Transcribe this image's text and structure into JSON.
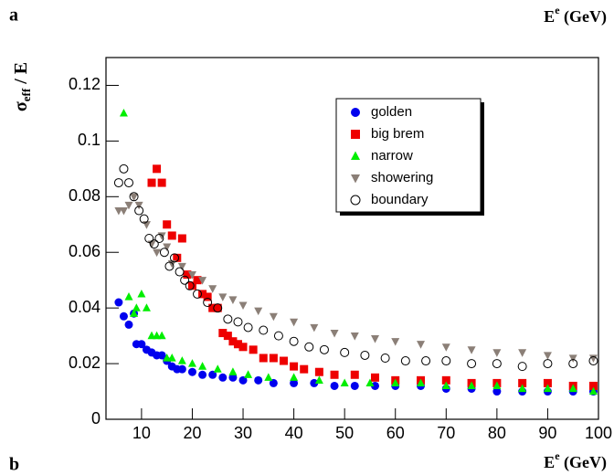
{
  "panel_a": "a",
  "panel_b": "b",
  "header_label": {
    "base": "E",
    "sup": "e",
    "unit": "(GeV)"
  },
  "chart_data": {
    "type": "scatter",
    "x_label": {
      "base": "E",
      "sup": "e",
      "unit": "(GeV)"
    },
    "y_label": {
      "base": "σ",
      "sub": "eff",
      "rest": "/ E"
    },
    "xlim": [
      3,
      100
    ],
    "ylim": [
      0,
      0.13
    ],
    "xticks": [
      10,
      20,
      30,
      40,
      50,
      60,
      70,
      80,
      90,
      100
    ],
    "yticks": [
      0,
      0.02,
      0.04,
      0.06,
      0.08,
      0.1,
      0.12
    ],
    "legend": "upper right",
    "series": [
      {
        "name": "golden",
        "color": "#0000ee",
        "marker": "circle",
        "x": [
          5.5,
          6.5,
          7.5,
          8.5,
          9,
          10,
          11,
          12,
          13,
          14,
          15,
          16,
          17,
          18,
          20,
          22,
          24,
          26,
          28,
          30,
          33,
          36,
          40,
          44,
          48,
          52,
          56,
          60,
          65,
          70,
          75,
          80,
          85,
          90,
          95,
          99
        ],
        "values": [
          0.042,
          0.037,
          0.034,
          0.038,
          0.027,
          0.027,
          0.025,
          0.024,
          0.023,
          0.023,
          0.021,
          0.019,
          0.018,
          0.018,
          0.017,
          0.016,
          0.016,
          0.015,
          0.015,
          0.014,
          0.014,
          0.013,
          0.013,
          0.013,
          0.012,
          0.012,
          0.012,
          0.012,
          0.012,
          0.011,
          0.011,
          0.01,
          0.01,
          0.01,
          0.01,
          0.01
        ]
      },
      {
        "name": "big brem",
        "color": "#ee0000",
        "marker": "square",
        "x": [
          12,
          13,
          14,
          15,
          16,
          17,
          18,
          19,
          20,
          21,
          22,
          23,
          24,
          25,
          26,
          27,
          28,
          29,
          30,
          32,
          34,
          36,
          38,
          40,
          42,
          45,
          48,
          52,
          56,
          60,
          65,
          70,
          75,
          80,
          85,
          90,
          95,
          99
        ],
        "values": [
          0.085,
          0.09,
          0.085,
          0.07,
          0.066,
          0.058,
          0.065,
          0.052,
          0.048,
          0.05,
          0.045,
          0.044,
          0.04,
          0.04,
          0.031,
          0.03,
          0.028,
          0.027,
          0.026,
          0.025,
          0.022,
          0.022,
          0.021,
          0.019,
          0.018,
          0.017,
          0.016,
          0.016,
          0.015,
          0.014,
          0.014,
          0.014,
          0.013,
          0.013,
          0.013,
          0.013,
          0.012,
          0.012
        ]
      },
      {
        "name": "narrow",
        "color": "#00ee00",
        "marker": "triangle",
        "x": [
          6.5,
          7.5,
          8.5,
          9,
          10,
          11,
          12,
          13,
          14,
          15,
          16,
          18,
          20,
          22,
          25,
          28,
          31,
          35,
          40,
          45,
          50,
          55,
          60,
          65,
          70,
          75,
          80,
          85,
          90,
          95,
          99
        ],
        "values": [
          0.11,
          0.044,
          0.038,
          0.04,
          0.045,
          0.04,
          0.03,
          0.03,
          0.03,
          0.022,
          0.022,
          0.021,
          0.02,
          0.019,
          0.018,
          0.017,
          0.016,
          0.015,
          0.015,
          0.014,
          0.013,
          0.013,
          0.013,
          0.013,
          0.012,
          0.012,
          0.012,
          0.011,
          0.011,
          0.011,
          0.01
        ]
      },
      {
        "name": "showering",
        "color": "#8b7f77",
        "marker": "triangle-down",
        "x": [
          5.5,
          6.5,
          7.5,
          8.5,
          9.5,
          11,
          12,
          13,
          14,
          15,
          16,
          18,
          20,
          22,
          24,
          26,
          28,
          30,
          33,
          36,
          40,
          44,
          48,
          52,
          56,
          60,
          65,
          70,
          75,
          80,
          85,
          90,
          95,
          99
        ],
        "values": [
          0.075,
          0.075,
          0.077,
          0.08,
          0.077,
          0.07,
          0.063,
          0.06,
          0.066,
          0.062,
          0.056,
          0.055,
          0.052,
          0.05,
          0.047,
          0.044,
          0.043,
          0.041,
          0.039,
          0.037,
          0.035,
          0.033,
          0.031,
          0.03,
          0.029,
          0.028,
          0.027,
          0.026,
          0.025,
          0.024,
          0.024,
          0.023,
          0.022,
          0.022
        ]
      },
      {
        "name": "boundary",
        "color": "#000000",
        "marker": "open-circle",
        "x": [
          5.5,
          6.5,
          7.5,
          8.5,
          9.5,
          10.5,
          11.5,
          12.5,
          13.5,
          14.5,
          15.5,
          16.5,
          17.5,
          18.5,
          19.5,
          21,
          23,
          25,
          27,
          29,
          31,
          34,
          37,
          40,
          43,
          46,
          50,
          54,
          58,
          62,
          66,
          70,
          75,
          80,
          85,
          90,
          95,
          99
        ],
        "values": [
          0.085,
          0.09,
          0.085,
          0.08,
          0.075,
          0.072,
          0.065,
          0.063,
          0.065,
          0.06,
          0.055,
          0.058,
          0.053,
          0.05,
          0.048,
          0.045,
          0.042,
          0.04,
          0.036,
          0.035,
          0.033,
          0.032,
          0.03,
          0.028,
          0.026,
          0.025,
          0.024,
          0.023,
          0.022,
          0.021,
          0.021,
          0.021,
          0.02,
          0.02,
          0.019,
          0.02,
          0.02,
          0.021
        ]
      }
    ]
  }
}
